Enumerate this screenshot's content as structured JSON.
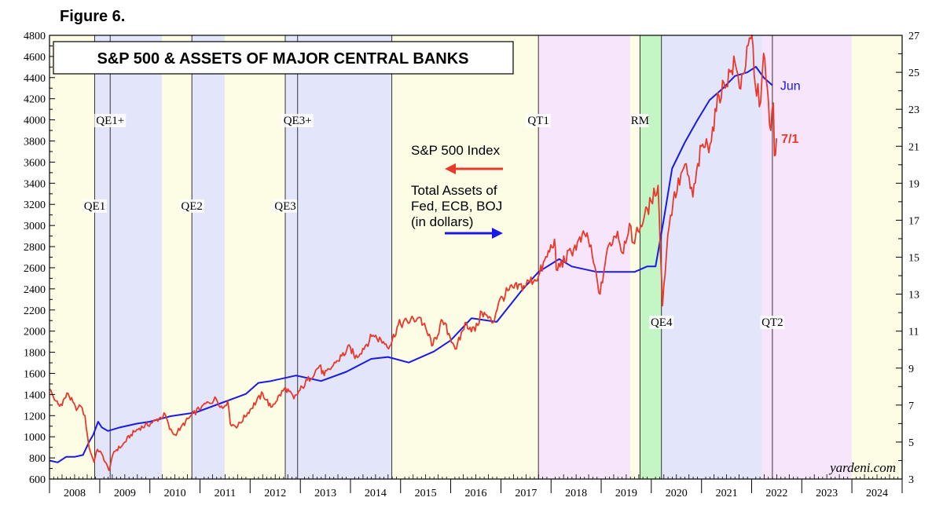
{
  "figure_label": "Figure 6.",
  "source": "yardeni.com",
  "chart_data": {
    "type": "line",
    "title": "S&P 500 & ASSETS OF MAJOR CENTRAL BANKS",
    "x_axis": {
      "type": "date",
      "range": [
        "2008-01-01",
        "2025-01-01"
      ],
      "tick_labels": [
        "2008",
        "2009",
        "2010",
        "2011",
        "2012",
        "2013",
        "2014",
        "2015",
        "2016",
        "2017",
        "2018",
        "2019",
        "2020",
        "2021",
        "2022",
        "2023",
        "2024"
      ]
    },
    "y_left": {
      "range": [
        600,
        4800
      ],
      "ticks": [
        600,
        800,
        1000,
        1200,
        1400,
        1600,
        1800,
        2000,
        2200,
        2400,
        2600,
        2800,
        3000,
        3200,
        3400,
        3600,
        3800,
        4000,
        4200,
        4400,
        4600,
        4800
      ]
    },
    "y_right": {
      "range": [
        3,
        27
      ],
      "ticks": [
        3,
        5,
        7,
        9,
        11,
        13,
        15,
        17,
        19,
        21,
        23,
        25,
        27
      ],
      "minor_every": 1
    },
    "legend": {
      "sp500_label": "S&P 500 Index",
      "assets_label_lines": [
        "Total Assets of",
        "Fed, ECB, BOJ",
        "(in dollars)"
      ]
    },
    "colors": {
      "sp500": "#e8392b",
      "assets": "#1a1ae6",
      "qe_shade": "#e3e5fa",
      "neutral_shade": "#fdfde6",
      "qt_shade": "#f7e6fb",
      "rm_shade": "#c4f5c4"
    },
    "regimes": [
      {
        "start": "2008-01-01",
        "end": "2008-11-25",
        "kind": "neutral"
      },
      {
        "start": "2008-11-25",
        "end": "2010-03-31",
        "kind": "qe"
      },
      {
        "start": "2010-03-31",
        "end": "2010-11-03",
        "kind": "neutral"
      },
      {
        "start": "2010-11-03",
        "end": "2011-06-30",
        "kind": "qe"
      },
      {
        "start": "2011-06-30",
        "end": "2012-09-13",
        "kind": "neutral"
      },
      {
        "start": "2012-09-13",
        "end": "2014-10-29",
        "kind": "qe"
      },
      {
        "start": "2014-10-29",
        "end": "2017-10-01",
        "kind": "neutral"
      },
      {
        "start": "2017-10-01",
        "end": "2019-07-31",
        "kind": "qt"
      },
      {
        "start": "2019-07-31",
        "end": "2019-10-11",
        "kind": "neutral"
      },
      {
        "start": "2019-10-11",
        "end": "2020-03-15",
        "kind": "rm"
      },
      {
        "start": "2020-03-15",
        "end": "2022-03-16",
        "kind": "qe"
      },
      {
        "start": "2022-03-16",
        "end": "2023-12-31",
        "kind": "qt"
      },
      {
        "start": "2023-12-31",
        "end": "2025-01-01",
        "kind": "neutral"
      }
    ],
    "events": [
      {
        "date": "2008-11-25",
        "label": "QE1",
        "label_y": 3150
      },
      {
        "date": "2009-03-18",
        "label": "QE1+",
        "label_y": 3960
      },
      {
        "date": "2010-11-03",
        "label": "QE2",
        "label_y": 3150
      },
      {
        "date": "2012-09-13",
        "label": "QE3",
        "label_y": 3150
      },
      {
        "date": "2012-12-12",
        "label": "QE3+",
        "label_y": 3960
      },
      {
        "date": "2014-10-29",
        "label": ""
      },
      {
        "date": "2017-10-01",
        "label": "QT1",
        "label_y": 3960
      },
      {
        "date": "2019-10-11",
        "label": "RM",
        "label_y": 3960
      },
      {
        "date": "2020-03-15",
        "label": "QE4",
        "label_y": 2050
      },
      {
        "date": "2022-06-01",
        "label": "QT2",
        "label_y": 2050
      }
    ],
    "sp500_series": {
      "name": "S&P 500 Index",
      "axis": "left",
      "end_label": "7/1",
      "points": [
        [
          "2008-01-01",
          1450
        ],
        [
          "2008-02-15",
          1340
        ],
        [
          "2008-03-15",
          1290
        ],
        [
          "2008-05-15",
          1410
        ],
        [
          "2008-07-15",
          1250
        ],
        [
          "2008-08-15",
          1290
        ],
        [
          "2008-09-15",
          1200
        ],
        [
          "2008-10-15",
          900
        ],
        [
          "2008-11-20",
          760
        ],
        [
          "2008-12-15",
          880
        ],
        [
          "2009-01-15",
          840
        ],
        [
          "2009-03-09",
          680
        ],
        [
          "2009-04-15",
          860
        ],
        [
          "2009-06-15",
          920
        ],
        [
          "2009-08-15",
          1020
        ],
        [
          "2009-10-15",
          1080
        ],
        [
          "2010-01-15",
          1130
        ],
        [
          "2010-04-23",
          1210
        ],
        [
          "2010-05-25",
          1070
        ],
        [
          "2010-07-02",
          1020
        ],
        [
          "2010-08-15",
          1090
        ],
        [
          "2010-10-15",
          1180
        ],
        [
          "2011-01-15",
          1290
        ],
        [
          "2011-04-29",
          1360
        ],
        [
          "2011-06-15",
          1270
        ],
        [
          "2011-07-22",
          1340
        ],
        [
          "2011-08-10",
          1120
        ],
        [
          "2011-10-03",
          1100
        ],
        [
          "2011-12-15",
          1230
        ],
        [
          "2012-04-02",
          1410
        ],
        [
          "2012-06-01",
          1280
        ],
        [
          "2012-09-15",
          1465
        ],
        [
          "2012-11-15",
          1360
        ],
        [
          "2013-01-15",
          1470
        ],
        [
          "2013-05-20",
          1670
        ],
        [
          "2013-06-24",
          1580
        ],
        [
          "2013-09-15",
          1700
        ],
        [
          "2013-12-31",
          1850
        ],
        [
          "2014-02-03",
          1740
        ],
        [
          "2014-06-15",
          1960
        ],
        [
          "2014-10-15",
          1860
        ],
        [
          "2014-12-15",
          2060
        ],
        [
          "2015-05-20",
          2130
        ],
        [
          "2015-08-25",
          1870
        ],
        [
          "2015-11-02",
          2100
        ],
        [
          "2016-02-11",
          1830
        ],
        [
          "2016-04-15",
          2080
        ],
        [
          "2016-06-27",
          2000
        ],
        [
          "2016-08-15",
          2180
        ],
        [
          "2016-11-04",
          2080
        ],
        [
          "2016-12-15",
          2270
        ],
        [
          "2017-03-01",
          2390
        ],
        [
          "2017-06-15",
          2430
        ],
        [
          "2017-10-01",
          2520
        ],
        [
          "2018-01-26",
          2870
        ],
        [
          "2018-02-08",
          2580
        ],
        [
          "2018-06-15",
          2780
        ],
        [
          "2018-09-20",
          2930
        ],
        [
          "2018-12-24",
          2350
        ],
        [
          "2019-02-15",
          2780
        ],
        [
          "2019-04-30",
          2945
        ],
        [
          "2019-06-03",
          2740
        ],
        [
          "2019-07-26",
          3020
        ],
        [
          "2019-08-15",
          2840
        ],
        [
          "2019-10-15",
          3000
        ],
        [
          "2019-12-31",
          3230
        ],
        [
          "2020-02-19",
          3380
        ],
        [
          "2020-03-23",
          2240
        ],
        [
          "2020-04-30",
          2910
        ],
        [
          "2020-06-08",
          3230
        ],
        [
          "2020-09-02",
          3580
        ],
        [
          "2020-10-30",
          3270
        ],
        [
          "2020-12-31",
          3750
        ],
        [
          "2021-03-04",
          3770
        ],
        [
          "2021-05-07",
          4230
        ],
        [
          "2021-09-02",
          4540
        ],
        [
          "2021-10-04",
          4300
        ],
        [
          "2022-01-03",
          4800
        ],
        [
          "2022-01-27",
          4330
        ],
        [
          "2022-03-08",
          4170
        ],
        [
          "2022-03-29",
          4630
        ],
        [
          "2022-05-20",
          3900
        ],
        [
          "2022-06-08",
          4160
        ],
        [
          "2022-06-16",
          3660
        ],
        [
          "2022-07-01",
          3825
        ]
      ]
    },
    "assets_series": {
      "name": "Total Assets of Fed, ECB, BOJ (in dollars)",
      "axis": "right",
      "end_label": "Jun",
      "points": [
        [
          "2008-01-01",
          4.0
        ],
        [
          "2008-03-01",
          3.9
        ],
        [
          "2008-05-01",
          4.2
        ],
        [
          "2008-07-01",
          4.2
        ],
        [
          "2008-09-01",
          4.3
        ],
        [
          "2008-10-15",
          5.0
        ],
        [
          "2008-11-15",
          5.4
        ],
        [
          "2008-12-20",
          6.1
        ],
        [
          "2009-01-15",
          5.8
        ],
        [
          "2009-03-01",
          5.6
        ],
        [
          "2009-06-01",
          5.8
        ],
        [
          "2009-10-01",
          6.0
        ],
        [
          "2010-01-01",
          6.1
        ],
        [
          "2010-06-01",
          6.4
        ],
        [
          "2010-12-01",
          6.6
        ],
        [
          "2011-06-01",
          7.1
        ],
        [
          "2011-12-01",
          7.6
        ],
        [
          "2012-03-01",
          8.2
        ],
        [
          "2012-06-01",
          8.3
        ],
        [
          "2012-12-01",
          8.6
        ],
        [
          "2013-06-01",
          8.3
        ],
        [
          "2013-12-01",
          8.8
        ],
        [
          "2014-06-01",
          9.5
        ],
        [
          "2014-10-01",
          9.6
        ],
        [
          "2015-03-01",
          9.3
        ],
        [
          "2015-09-01",
          9.9
        ],
        [
          "2016-01-01",
          10.5
        ],
        [
          "2016-06-01",
          11.7
        ],
        [
          "2016-12-01",
          11.5
        ],
        [
          "2017-06-01",
          13.2
        ],
        [
          "2017-10-01",
          14.2
        ],
        [
          "2018-03-01",
          14.9
        ],
        [
          "2018-06-01",
          14.5
        ],
        [
          "2018-12-01",
          14.2
        ],
        [
          "2019-04-01",
          14.2
        ],
        [
          "2019-09-01",
          14.2
        ],
        [
          "2019-12-01",
          14.5
        ],
        [
          "2020-02-01",
          14.5
        ],
        [
          "2020-03-31",
          17.0
        ],
        [
          "2020-06-01",
          19.8
        ],
        [
          "2020-09-01",
          21.2
        ],
        [
          "2020-12-01",
          22.4
        ],
        [
          "2021-03-01",
          23.5
        ],
        [
          "2021-06-01",
          24.1
        ],
        [
          "2021-09-01",
          24.8
        ],
        [
          "2021-12-01",
          25.0
        ],
        [
          "2022-02-01",
          25.3
        ],
        [
          "2022-04-01",
          24.7
        ],
        [
          "2022-06-01",
          24.3
        ]
      ]
    }
  }
}
